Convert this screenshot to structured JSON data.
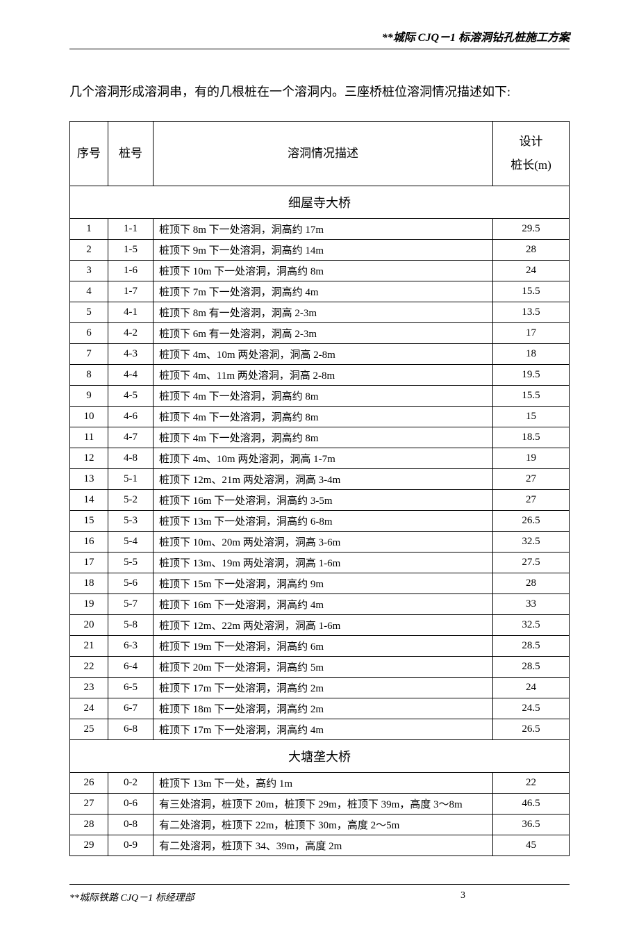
{
  "header": {
    "title": "**城际 CJQ－1 标溶洞钻孔桩施工方案"
  },
  "intro": "几个溶洞形成溶洞串，有的几根桩在一个溶洞内。三座桥桩位溶洞情况描述如下:",
  "table": {
    "columns": {
      "seq": "序号",
      "pile": "桩号",
      "desc": "溶洞情况描述",
      "design": "设计桩长(m)"
    },
    "sections": [
      {
        "title": "细屋寺大桥",
        "rows": [
          {
            "seq": "1",
            "pile": "1-1",
            "desc": "桩顶下 8m 下一处溶洞，洞高约 17m",
            "len": "29.5"
          },
          {
            "seq": "2",
            "pile": "1-5",
            "desc": "桩顶下 9m 下一处溶洞，洞高约 14m",
            "len": "28"
          },
          {
            "seq": "3",
            "pile": "1-6",
            "desc": "桩顶下 10m 下一处溶洞，洞高约 8m",
            "len": "24"
          },
          {
            "seq": "4",
            "pile": "1-7",
            "desc": "桩顶下 7m 下一处溶洞，洞高约 4m",
            "len": "15.5"
          },
          {
            "seq": "5",
            "pile": "4-1",
            "desc": "桩顶下 8m 有一处溶洞，洞高 2-3m",
            "len": "13.5"
          },
          {
            "seq": "6",
            "pile": "4-2",
            "desc": "桩顶下 6m 有一处溶洞，洞高 2-3m",
            "len": "17"
          },
          {
            "seq": "7",
            "pile": "4-3",
            "desc": "桩顶下 4m、10m 两处溶洞，洞高 2-8m",
            "len": "18"
          },
          {
            "seq": "8",
            "pile": "4-4",
            "desc": "桩顶下 4m、11m 两处溶洞，洞高 2-8m",
            "len": "19.5"
          },
          {
            "seq": "9",
            "pile": "4-5",
            "desc": "桩顶下 4m 下一处溶洞，洞高约 8m",
            "len": "15.5"
          },
          {
            "seq": "10",
            "pile": "4-6",
            "desc": "桩顶下 4m 下一处溶洞，洞高约 8m",
            "len": "15"
          },
          {
            "seq": "11",
            "pile": "4-7",
            "desc": "桩顶下 4m 下一处溶洞，洞高约 8m",
            "len": "18.5"
          },
          {
            "seq": "12",
            "pile": "4-8",
            "desc": "桩顶下 4m、10m 两处溶洞，洞高 1-7m",
            "len": "19"
          },
          {
            "seq": "13",
            "pile": "5-1",
            "desc": "桩顶下 12m、21m 两处溶洞，洞高 3-4m",
            "len": "27"
          },
          {
            "seq": "14",
            "pile": "5-2",
            "desc": "桩顶下 16m 下一处溶洞，洞高约 3-5m",
            "len": "27"
          },
          {
            "seq": "15",
            "pile": "5-3",
            "desc": "桩顶下 13m 下一处溶洞，洞高约 6-8m",
            "len": "26.5"
          },
          {
            "seq": "16",
            "pile": "5-4",
            "desc": "桩顶下 10m、20m 两处溶洞，洞高 3-6m",
            "len": "32.5"
          },
          {
            "seq": "17",
            "pile": "5-5",
            "desc": "桩顶下 13m、19m 两处溶洞，洞高 1-6m",
            "len": "27.5"
          },
          {
            "seq": "18",
            "pile": "5-6",
            "desc": "桩顶下 15m 下一处溶洞，洞高约 9m",
            "len": "28"
          },
          {
            "seq": "19",
            "pile": "5-7",
            "desc": "桩顶下 16m 下一处溶洞，洞高约 4m",
            "len": "33"
          },
          {
            "seq": "20",
            "pile": "5-8",
            "desc": "桩顶下 12m、22m 两处溶洞，洞高 1-6m",
            "len": "32.5"
          },
          {
            "seq": "21",
            "pile": "6-3",
            "desc": "桩顶下 19m 下一处溶洞，洞高约 6m",
            "len": "28.5"
          },
          {
            "seq": "22",
            "pile": "6-4",
            "desc": "桩顶下 20m 下一处溶洞，洞高约 5m",
            "len": "28.5"
          },
          {
            "seq": "23",
            "pile": "6-5",
            "desc": "桩顶下 17m 下一处溶洞，洞高约 2m",
            "len": "24"
          },
          {
            "seq": "24",
            "pile": "6-7",
            "desc": "桩顶下 18m 下一处溶洞，洞高约 2m",
            "len": "24.5"
          },
          {
            "seq": "25",
            "pile": "6-8",
            "desc": "桩顶下 17m 下一处溶洞，洞高约 4m",
            "len": "26.5"
          }
        ]
      },
      {
        "title": "大塘垄大桥",
        "rows": [
          {
            "seq": "26",
            "pile": "0-2",
            "desc": "桩顶下 13m 下一处，高约 1m",
            "len": "22"
          },
          {
            "seq": "27",
            "pile": "0-6",
            "desc": "有三处溶洞，桩顶下 20m，桩顶下 29m，桩顶下 39m，高度 3～8m",
            "len": "46.5"
          },
          {
            "seq": "28",
            "pile": "0-8",
            "desc": "有二处溶洞，桩顶下 22m，桩顶下 30m，高度 2～5m",
            "len": "36.5"
          },
          {
            "seq": "29",
            "pile": "0-9",
            "desc": "有二处溶洞，桩顶下 34、39m，高度 2m",
            "len": "45"
          }
        ]
      }
    ]
  },
  "footer": {
    "left": "**城际铁路 CJQ－1 标经理部",
    "page": "3"
  }
}
